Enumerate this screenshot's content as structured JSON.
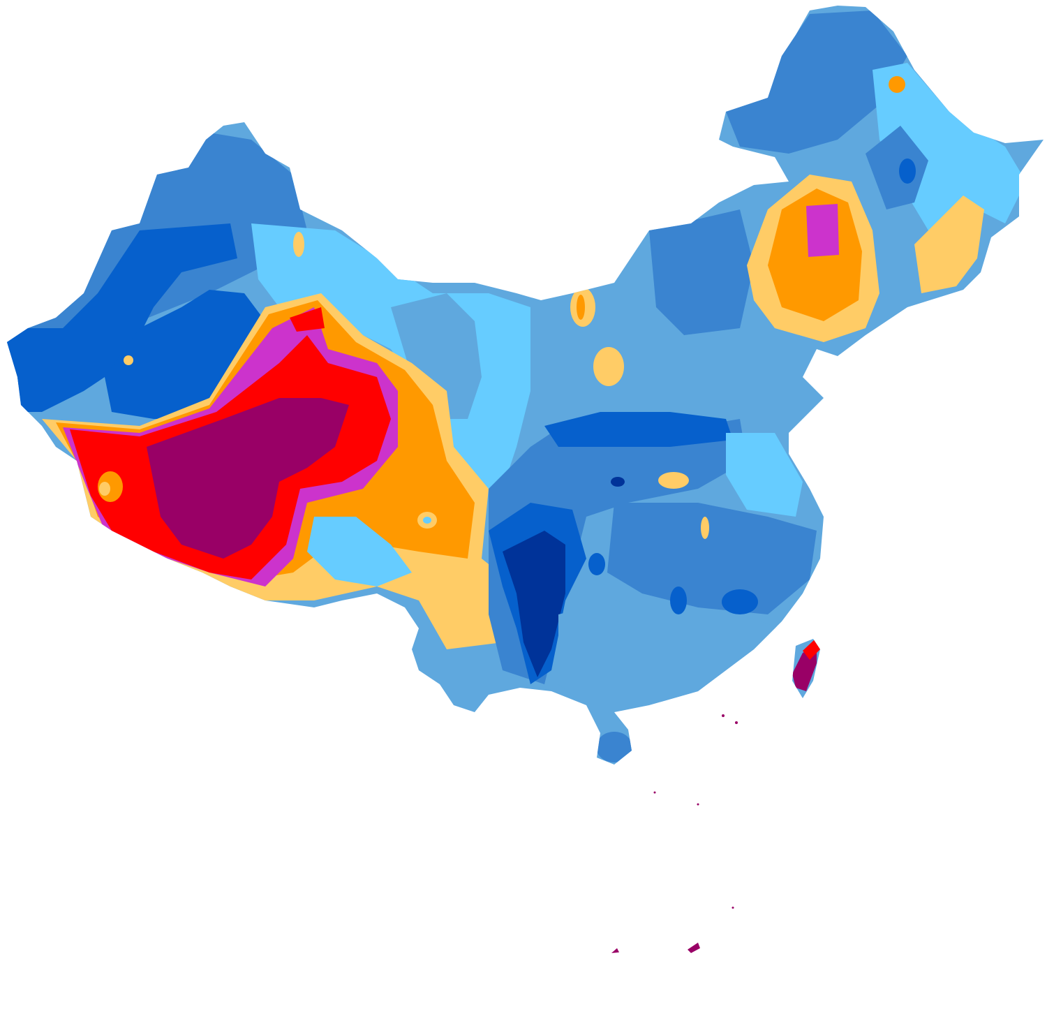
{
  "map": {
    "kind": "contour-map",
    "region_outline": "country-shape",
    "palette": {
      "level_1": "#003399",
      "level_2": "#0660CC",
      "level_3": "#3A84D0",
      "level_4": "#5FA8DE",
      "level_5": "#66CCFF",
      "level_6": "#FFCC66",
      "level_7": "#FF9900",
      "level_8": "#CC33CC",
      "level_9": "#FF0000",
      "level_10": "#990066"
    },
    "legend": null,
    "labels": []
  }
}
